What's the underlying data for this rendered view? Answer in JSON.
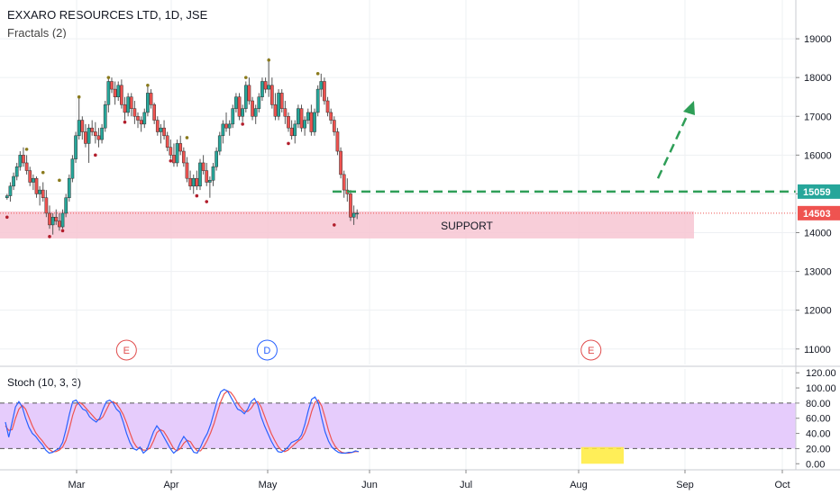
{
  "header": {
    "title": "EXXARO RESOURCES LTD, 1D, JSE",
    "subtitle": "Fractals (2)",
    "stoch_label": "Stoch (10, 3, 3)"
  },
  "chart_data": [
    {
      "type": "candlestick",
      "x_months": [
        "Mar",
        "Apr",
        "May",
        "Jun",
        "Jul",
        "Aug",
        "Sep",
        "Oct"
      ],
      "y_ticks": [
        11000,
        12000,
        13000,
        14000,
        15000,
        16000,
        17000,
        18000,
        19000
      ],
      "ylim": [
        10600,
        20000
      ],
      "price_labels": [
        {
          "text": "15059",
          "value": 15059,
          "color": "#26a69a"
        },
        {
          "text": "14503",
          "value": 14503,
          "color": "#ef5350"
        }
      ],
      "support": {
        "label": "SUPPORT",
        "low": 13850,
        "high": 14550,
        "color": "#f7c6d2"
      },
      "event_markers": [
        {
          "text": "E",
          "color": "#e04d4d",
          "day": 37
        },
        {
          "text": "D",
          "color": "#2962ff",
          "day": 80
        },
        {
          "text": "E",
          "color": "#e04d4d",
          "day": 179
        }
      ],
      "candles": [
        [
          14900,
          15000,
          14850,
          14950
        ],
        [
          14950,
          15300,
          14800,
          15200
        ],
        [
          15200,
          15550,
          15100,
          15450
        ],
        [
          15450,
          15800,
          15350,
          15700
        ],
        [
          15700,
          16100,
          15600,
          16000
        ],
        [
          16000,
          16200,
          15700,
          15800
        ],
        [
          15800,
          16000,
          15500,
          15600
        ],
        [
          15600,
          15700,
          15200,
          15300
        ],
        [
          15300,
          15500,
          15100,
          15400
        ],
        [
          15400,
          15450,
          14900,
          15000
        ],
        [
          15000,
          15200,
          14700,
          15100
        ],
        [
          15100,
          15300,
          14800,
          14900
        ],
        [
          14900,
          15100,
          14400,
          14500
        ],
        [
          14500,
          14700,
          14100,
          14200
        ],
        [
          14200,
          14500,
          13950,
          14400
        ],
        [
          14400,
          14600,
          14200,
          14300
        ],
        [
          14300,
          14500,
          14050,
          14150
        ],
        [
          14150,
          14600,
          14100,
          14500
        ],
        [
          14500,
          15000,
          14400,
          14900
        ],
        [
          14900,
          15500,
          14800,
          15400
        ],
        [
          15400,
          16000,
          15300,
          15900
        ],
        [
          15900,
          16600,
          15800,
          16500
        ],
        [
          16500,
          17500,
          16400,
          16900
        ],
        [
          16900,
          17000,
          16400,
          16600
        ],
        [
          16600,
          16800,
          16200,
          16300
        ],
        [
          16300,
          16800,
          15800,
          16700
        ],
        [
          16700,
          16900,
          16500,
          16600
        ],
        [
          16600,
          16850,
          16300,
          16500
        ],
        [
          16500,
          16700,
          16200,
          16400
        ],
        [
          16400,
          16800,
          16300,
          16700
        ],
        [
          16700,
          17400,
          16600,
          17300
        ],
        [
          17300,
          18000,
          17100,
          17900
        ],
        [
          17900,
          18000,
          17600,
          17700
        ],
        [
          17700,
          17900,
          17300,
          17500
        ],
        [
          17500,
          17900,
          17400,
          17800
        ],
        [
          17800,
          17950,
          17200,
          17300
        ],
        [
          17300,
          17500,
          16900,
          17100
        ],
        [
          17100,
          17600,
          17000,
          17500
        ],
        [
          17500,
          17600,
          17000,
          17200
        ],
        [
          17200,
          17400,
          16800,
          17000
        ],
        [
          17000,
          17100,
          16700,
          16900
        ],
        [
          16900,
          17000,
          16600,
          16800
        ],
        [
          16800,
          17200,
          16700,
          17100
        ],
        [
          17100,
          17800,
          17000,
          17600
        ],
        [
          17600,
          17700,
          17200,
          17300
        ],
        [
          17300,
          17350,
          16800,
          16900
        ],
        [
          16900,
          17000,
          16500,
          16600
        ],
        [
          16600,
          16800,
          16300,
          16700
        ],
        [
          16700,
          16900,
          16400,
          16500
        ],
        [
          16500,
          16600,
          16100,
          16200
        ],
        [
          16200,
          16400,
          15900,
          16000
        ],
        [
          16000,
          16300,
          15700,
          15800
        ],
        [
          15800,
          16400,
          15700,
          16300
        ],
        [
          16300,
          16500,
          16000,
          16100
        ],
        [
          16100,
          16200,
          15700,
          15800
        ],
        [
          15800,
          15950,
          15300,
          15400
        ],
        [
          15400,
          15600,
          15100,
          15200
        ],
        [
          15200,
          15500,
          15000,
          15400
        ],
        [
          15400,
          15600,
          15100,
          15200
        ],
        [
          15200,
          15900,
          15100,
          15800
        ],
        [
          15800,
          16000,
          15500,
          15600
        ],
        [
          15600,
          15800,
          15200,
          15300
        ],
        [
          15300,
          15450,
          14900,
          15350
        ],
        [
          15350,
          15800,
          15200,
          15700
        ],
        [
          15700,
          16200,
          15600,
          16100
        ],
        [
          16100,
          16600,
          16000,
          16500
        ],
        [
          16500,
          16900,
          16300,
          16800
        ],
        [
          16800,
          17100,
          16600,
          16700
        ],
        [
          16700,
          16900,
          16500,
          16800
        ],
        [
          16800,
          17300,
          16700,
          17200
        ],
        [
          17200,
          17600,
          17100,
          17500
        ],
        [
          17500,
          17600,
          16900,
          17000
        ],
        [
          17000,
          17300,
          16850,
          17200
        ],
        [
          17200,
          17900,
          17100,
          17800
        ],
        [
          17800,
          18000,
          17300,
          17400
        ],
        [
          17400,
          17500,
          16900,
          17000
        ],
        [
          17000,
          17300,
          16800,
          17200
        ],
        [
          17200,
          17600,
          17100,
          17500
        ],
        [
          17500,
          18000,
          17400,
          17900
        ],
        [
          17900,
          18000,
          17600,
          17700
        ],
        [
          17700,
          18500,
          17500,
          17800
        ],
        [
          17800,
          18000,
          17200,
          17300
        ],
        [
          17300,
          17600,
          16900,
          17000
        ],
        [
          17000,
          17700,
          16900,
          17600
        ],
        [
          17600,
          17700,
          17100,
          17200
        ],
        [
          17200,
          17400,
          16800,
          17000
        ],
        [
          17000,
          17100,
          16600,
          16700
        ],
        [
          16700,
          16900,
          16400,
          16500
        ],
        [
          16500,
          16900,
          16300,
          16800
        ],
        [
          16800,
          17300,
          16700,
          17200
        ],
        [
          17200,
          17300,
          16600,
          16700
        ],
        [
          16700,
          17000,
          16500,
          16900
        ],
        [
          16900,
          17200,
          16800,
          17100
        ],
        [
          17100,
          17300,
          16500,
          16600
        ],
        [
          16600,
          17200,
          16500,
          17100
        ],
        [
          17100,
          17800,
          17000,
          17700
        ],
        [
          17700,
          18100,
          17500,
          17900
        ],
        [
          17900,
          18000,
          17300,
          17400
        ],
        [
          17400,
          17500,
          17000,
          17100
        ],
        [
          17100,
          17200,
          16800,
          16900
        ],
        [
          16900,
          17000,
          16500,
          16600
        ],
        [
          16600,
          16700,
          16000,
          16100
        ],
        [
          16100,
          16200,
          15400,
          15500
        ],
        [
          15500,
          15600,
          14900,
          15100
        ],
        [
          15100,
          15400,
          14800,
          15000
        ],
        [
          15000,
          15100,
          14300,
          14400
        ],
        [
          14400,
          14700,
          14200,
          14500
        ],
        [
          14500,
          14600,
          14350,
          14503
        ]
      ],
      "fractals_up": [
        [
          6,
          16150
        ],
        [
          11,
          15550
        ],
        [
          16,
          15350
        ],
        [
          22,
          17500
        ],
        [
          31,
          18000
        ],
        [
          43,
          17800
        ],
        [
          55,
          16450
        ],
        [
          73,
          18000
        ],
        [
          80,
          18450
        ],
        [
          95,
          18100
        ]
      ],
      "fractals_down": [
        [
          0,
          14400
        ],
        [
          13,
          13900
        ],
        [
          17,
          14050
        ],
        [
          27,
          16000
        ],
        [
          36,
          16850
        ],
        [
          50,
          15850
        ],
        [
          58,
          14950
        ],
        [
          61,
          14800
        ],
        [
          72,
          16800
        ],
        [
          86,
          16300
        ],
        [
          100,
          14200
        ]
      ]
    },
    {
      "type": "line",
      "name": "Stoch (10, 3, 3)",
      "y_ticks": [
        0.0,
        20.0,
        40.0,
        60.0,
        80.0,
        100.0,
        120.0
      ],
      "y_tick_labels": [
        "0.00",
        "20.00",
        "40.00",
        "60.00",
        "80.00",
        "100.00",
        "120.00"
      ],
      "bands": [
        20,
        80
      ],
      "ylim": [
        -8,
        125
      ],
      "k": [
        55,
        35,
        55,
        75,
        82,
        75,
        60,
        48,
        40,
        36,
        30,
        25,
        18,
        14,
        15,
        18,
        20,
        28,
        45,
        65,
        82,
        84,
        78,
        72,
        70,
        62,
        58,
        55,
        60,
        72,
        82,
        84,
        80,
        72,
        68,
        55,
        40,
        28,
        20,
        18,
        22,
        14,
        18,
        30,
        42,
        50,
        44,
        36,
        28,
        20,
        14,
        18,
        28,
        36,
        30,
        22,
        15,
        14,
        22,
        32,
        40,
        52,
        68,
        84,
        95,
        98,
        96,
        88,
        80,
        72,
        70,
        66,
        72,
        82,
        86,
        78,
        62,
        50,
        40,
        30,
        22,
        16,
        15,
        18,
        22,
        28,
        30,
        32,
        38,
        52,
        70,
        85,
        88,
        80,
        60,
        42,
        30,
        22,
        18,
        15,
        14,
        14,
        15,
        15,
        17,
        16
      ],
      "d": [
        50,
        44,
        45,
        60,
        72,
        77,
        72,
        61,
        50,
        41,
        35,
        30,
        24,
        19,
        16,
        16,
        18,
        22,
        31,
        46,
        64,
        77,
        81,
        78,
        73,
        68,
        63,
        58,
        58,
        62,
        71,
        80,
        82,
        79,
        73,
        65,
        54,
        41,
        29,
        22,
        20,
        18,
        18,
        21,
        30,
        41,
        45,
        43,
        36,
        28,
        20,
        17,
        20,
        27,
        31,
        29,
        22,
        17,
        17,
        23,
        31,
        41,
        53,
        68,
        82,
        92,
        96,
        94,
        88,
        80,
        74,
        69,
        69,
        73,
        80,
        82,
        75,
        63,
        51,
        40,
        31,
        23,
        18,
        16,
        18,
        22,
        26,
        30,
        33,
        41,
        53,
        69,
        81,
        84,
        76,
        61,
        44,
        31,
        23,
        18,
        15,
        14,
        14,
        15,
        16,
        16
      ],
      "highlight": {
        "from_day": 176,
        "to_day": 189,
        "low": 0,
        "high": 22,
        "color": "#ffeb3b"
      }
    }
  ],
  "colors": {
    "up": "#26a69a",
    "down": "#ef5350",
    "wick": "#555555",
    "fractal_up": "#8a7a1c",
    "fractal_down": "#b21e2c",
    "stoch_k": "#2962ff",
    "stoch_d": "#ef5350",
    "stoch_bg": "#e6ccfc",
    "projection": "#2e9e57"
  }
}
